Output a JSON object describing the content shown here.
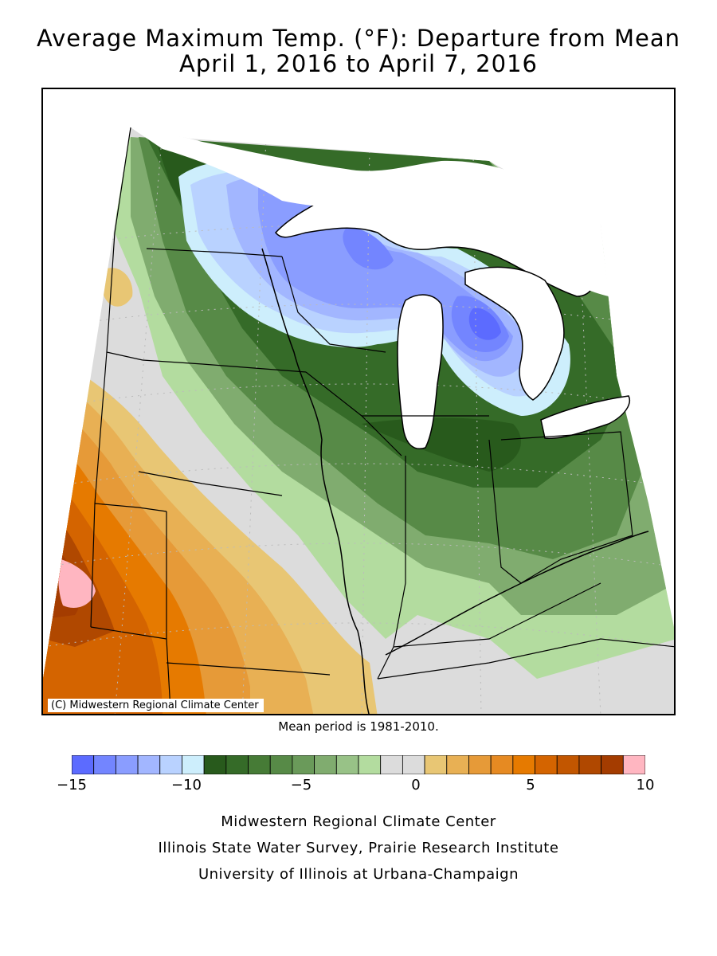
{
  "title": {
    "line1": "Average Maximum Temp. (°F): Departure from Mean",
    "line2": "April 1, 2016 to April 7, 2016"
  },
  "map": {
    "credit": "(C) Midwestern Regional Climate Center",
    "mean_period": "Mean period is 1981-2010."
  },
  "legend": {
    "min": -15,
    "max": 10,
    "step": 1,
    "tick_labels": [
      "−15",
      "−10",
      "−5",
      "0",
      "5",
      "10"
    ],
    "tick_values": [
      -15,
      -10,
      -5,
      0,
      5,
      10
    ],
    "colors": [
      "#5c6bff",
      "#7385ff",
      "#8a9dff",
      "#a2b6ff",
      "#b9d2ff",
      "#cdeefc",
      "#285a1c",
      "#356b28",
      "#467b36",
      "#578a47",
      "#6a9a5a",
      "#80ac6f",
      "#98c287",
      "#b3dc9f",
      "#dcdcdc",
      "#dcdcdc",
      "#e8c674",
      "#e8b054",
      "#e69a38",
      "#e68a22",
      "#e67a00",
      "#d46400",
      "#c25600",
      "#b04800",
      "#a43c00",
      "#ffb6c1"
    ]
  },
  "footer": {
    "line1": "Midwestern Regional Climate Center",
    "line2": "Illinois State Water Survey, Prairie Research Institute",
    "line3": "University of Illinois at Urbana-Champaign"
  }
}
